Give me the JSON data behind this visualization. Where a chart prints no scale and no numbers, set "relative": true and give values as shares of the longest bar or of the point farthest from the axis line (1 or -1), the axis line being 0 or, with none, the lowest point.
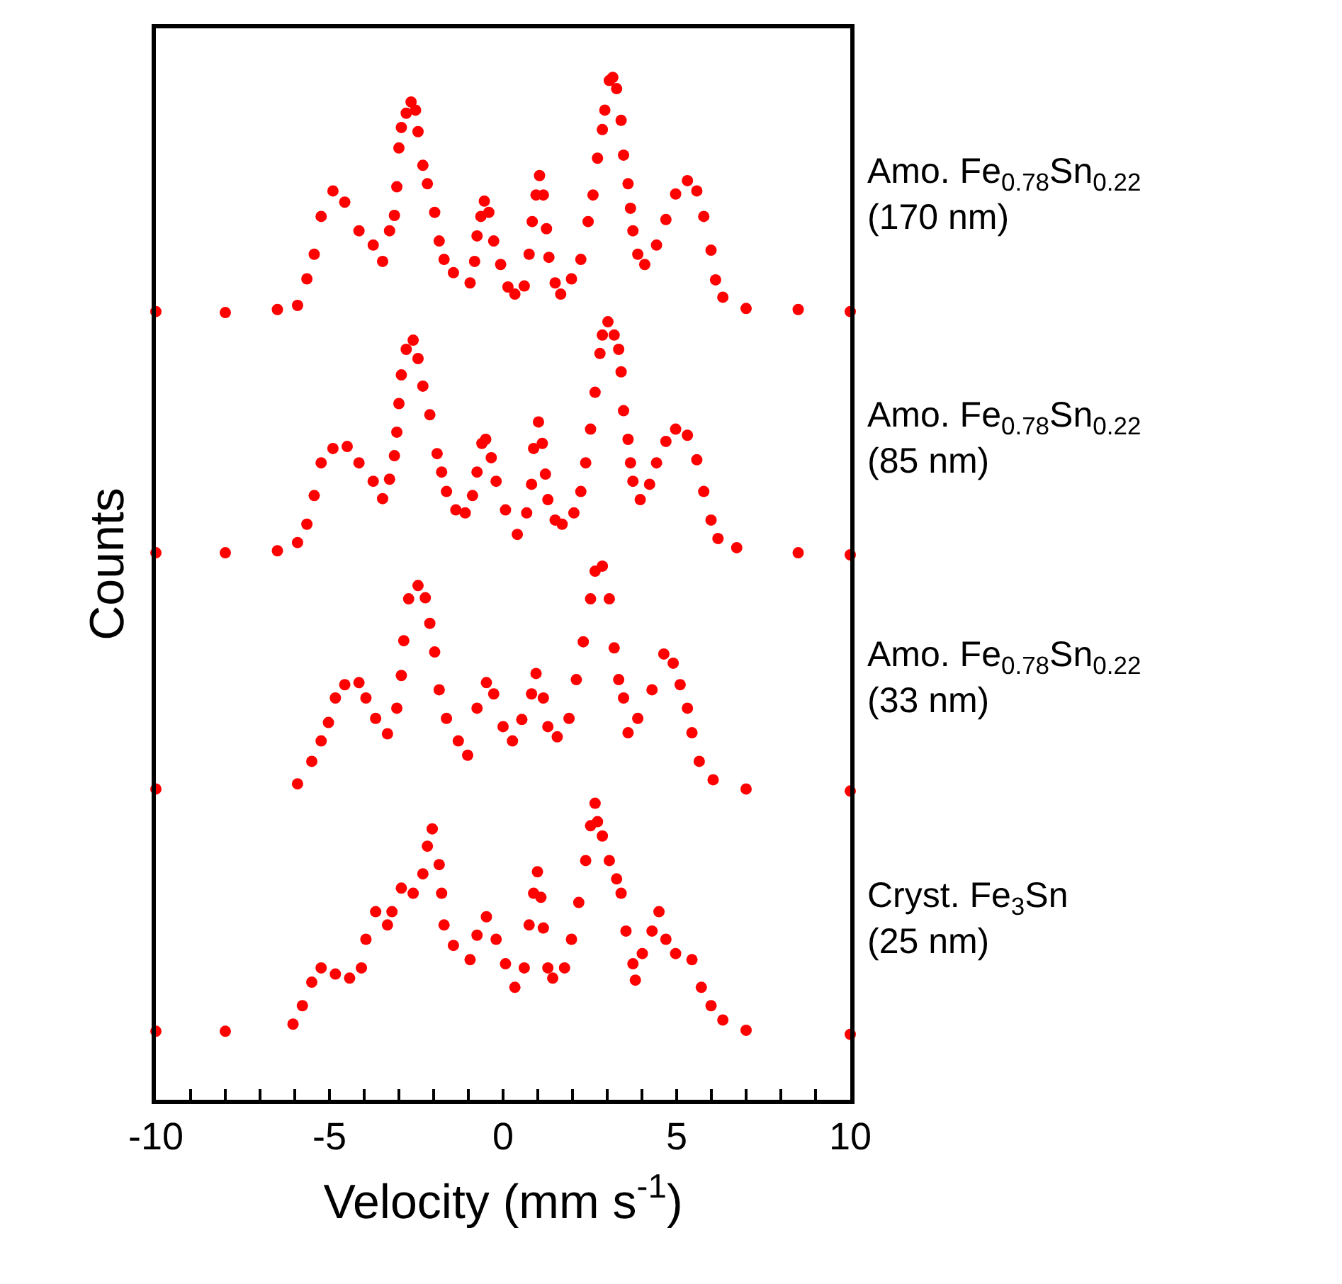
{
  "chart_data": {
    "type": "scatter",
    "relative": true,
    "xlabel": "Velocity (mm s$^{-1}$)",
    "ylabel": "Counts",
    "xlim": [
      -10,
      10
    ],
    "xticks": [
      -10,
      {
        "value": -9,
        "label": null
      },
      {
        "value": -8,
        "label": null
      },
      {
        "value": -7,
        "label": null
      },
      {
        "value": -6,
        "label": null
      },
      -5,
      {
        "value": -4,
        "label": null
      },
      {
        "value": -3,
        "label": null
      },
      {
        "value": -2,
        "label": null
      },
      {
        "value": -1,
        "label": null
      },
      0,
      {
        "value": 1,
        "label": null
      },
      {
        "value": 2,
        "label": null
      },
      {
        "value": 3,
        "label": null
      },
      {
        "value": 4,
        "label": null
      },
      5,
      {
        "value": 6,
        "label": null
      },
      {
        "value": 7,
        "label": null
      },
      {
        "value": 8,
        "label": null
      },
      {
        "value": 9,
        "label": null
      },
      10
    ],
    "legend": false,
    "marker": "circle",
    "tick_labels": "x",
    "series": [
      {
        "name": "Amo. Fe$_{0.78}$Sn$_{0.22}$\n(170 nm)",
        "color": "#ff0000",
        "x": [
          -10,
          -8,
          -6.5,
          -5.92,
          -5.65,
          -5.44,
          -5.24,
          -4.9,
          -4.56,
          -4.15,
          -3.74,
          -3.47,
          -3.27,
          -3.13,
          -3.06,
          -3.0,
          -2.93,
          -2.79,
          -2.65,
          -2.52,
          -2.45,
          -2.31,
          -2.18,
          -1.97,
          -1.84,
          -1.7,
          -1.43,
          -0.95,
          -0.82,
          -0.75,
          -0.64,
          -0.54,
          -0.41,
          -0.27,
          -0.07,
          0.14,
          0.34,
          0.61,
          0.75,
          0.84,
          0.95,
          1.05,
          1.16,
          1.25,
          1.32,
          1.5,
          1.66,
          1.97,
          2.24,
          2.45,
          2.59,
          2.72,
          2.86,
          2.93,
          3.06,
          3.16,
          3.27,
          3.4,
          3.47,
          3.6,
          3.67,
          3.74,
          3.88,
          4.08,
          4.42,
          4.69,
          4.97,
          5.31,
          5.58,
          5.78,
          5.99,
          6.12,
          6.33,
          7.0,
          8.5,
          10
        ],
        "values": [
          0.771,
          0.77,
          0.773,
          0.777,
          0.803,
          0.827,
          0.864,
          0.889,
          0.878,
          0.85,
          0.836,
          0.82,
          0.85,
          0.865,
          0.893,
          0.931,
          0.951,
          0.965,
          0.976,
          0.968,
          0.947,
          0.914,
          0.896,
          0.868,
          0.84,
          0.822,
          0.809,
          0.799,
          0.82,
          0.845,
          0.864,
          0.879,
          0.868,
          0.84,
          0.817,
          0.795,
          0.788,
          0.796,
          0.827,
          0.859,
          0.885,
          0.904,
          0.885,
          0.852,
          0.824,
          0.799,
          0.788,
          0.803,
          0.822,
          0.859,
          0.885,
          0.921,
          0.949,
          0.968,
          0.997,
          1.0,
          0.989,
          0.958,
          0.924,
          0.896,
          0.872,
          0.85,
          0.827,
          0.817,
          0.836,
          0.861,
          0.886,
          0.899,
          0.889,
          0.864,
          0.831,
          0.802,
          0.785,
          0.774,
          0.773,
          0.771
        ]
      },
      {
        "name": "Amo. Fe$_{0.78}$Sn$_{0.22}$\n(85 nm)",
        "color": "#ff0000",
        "x": [
          -10,
          -8,
          -6.5,
          -5.92,
          -5.65,
          -5.44,
          -5.24,
          -4.9,
          -4.49,
          -4.15,
          -3.74,
          -3.47,
          -3.27,
          -3.13,
          -3.06,
          -3.0,
          -2.93,
          -2.79,
          -2.59,
          -2.45,
          -2.31,
          -2.11,
          -1.9,
          -1.77,
          -1.63,
          -1.36,
          -1.09,
          -0.88,
          -0.75,
          -0.61,
          -0.5,
          -0.34,
          -0.2,
          0.07,
          0.41,
          0.68,
          0.82,
          0.88,
          1.02,
          1.13,
          1.22,
          1.29,
          1.5,
          1.7,
          2.04,
          2.24,
          2.38,
          2.52,
          2.65,
          2.79,
          2.86,
          3.02,
          3.2,
          3.33,
          3.4,
          3.47,
          3.6,
          3.67,
          3.74,
          3.95,
          4.22,
          4.42,
          4.69,
          4.97,
          5.31,
          5.58,
          5.78,
          5.99,
          6.19,
          6.73,
          8.5,
          10
        ],
        "values": [
          0.535,
          0.535,
          0.537,
          0.545,
          0.563,
          0.591,
          0.623,
          0.637,
          0.639,
          0.623,
          0.605,
          0.588,
          0.607,
          0.63,
          0.653,
          0.681,
          0.709,
          0.734,
          0.743,
          0.725,
          0.698,
          0.67,
          0.632,
          0.614,
          0.595,
          0.577,
          0.574,
          0.591,
          0.614,
          0.642,
          0.646,
          0.628,
          0.605,
          0.577,
          0.553,
          0.574,
          0.602,
          0.637,
          0.663,
          0.642,
          0.612,
          0.587,
          0.567,
          0.563,
          0.574,
          0.595,
          0.623,
          0.656,
          0.692,
          0.73,
          0.748,
          0.761,
          0.748,
          0.734,
          0.712,
          0.674,
          0.646,
          0.623,
          0.605,
          0.587,
          0.602,
          0.623,
          0.644,
          0.656,
          0.65,
          0.626,
          0.595,
          0.567,
          0.549,
          0.54,
          0.535,
          0.533
        ]
      },
      {
        "name": "Amo. Fe$_{0.78}$Sn$_{0.22}$\n(33 nm)",
        "color": "#ff0000",
        "x": [
          -10,
          -5.92,
          -5.51,
          -5.24,
          -5.03,
          -4.83,
          -4.56,
          -4.15,
          -3.95,
          -3.67,
          -3.33,
          -3.06,
          -2.93,
          -2.86,
          -2.72,
          -2.45,
          -2.24,
          -2.11,
          -1.97,
          -1.84,
          -1.63,
          -1.29,
          -1.02,
          -0.75,
          -0.48,
          -0.27,
          0.0,
          0.27,
          0.54,
          0.82,
          0.95,
          1.16,
          1.29,
          1.56,
          1.9,
          2.11,
          2.31,
          2.52,
          2.65,
          2.86,
          3.06,
          3.2,
          3.33,
          3.47,
          3.6,
          3.88,
          4.29,
          4.63,
          4.9,
          5.1,
          5.31,
          5.44,
          5.65,
          6.05,
          7.0,
          10
        ],
        "values": [
          0.304,
          0.309,
          0.331,
          0.351,
          0.369,
          0.393,
          0.406,
          0.408,
          0.393,
          0.373,
          0.358,
          0.383,
          0.415,
          0.449,
          0.49,
          0.503,
          0.491,
          0.466,
          0.438,
          0.401,
          0.373,
          0.351,
          0.337,
          0.383,
          0.408,
          0.397,
          0.365,
          0.351,
          0.372,
          0.397,
          0.417,
          0.393,
          0.365,
          0.355,
          0.373,
          0.411,
          0.448,
          0.49,
          0.517,
          0.522,
          0.49,
          0.442,
          0.411,
          0.393,
          0.359,
          0.373,
          0.401,
          0.436,
          0.427,
          0.406,
          0.383,
          0.359,
          0.331,
          0.313,
          0.304,
          0.302
        ]
      },
      {
        "name": "Cryst. Fe$_{3}$Sn\n(25 nm)",
        "color": "#ff0000",
        "x": [
          -10,
          -8,
          -6.05,
          -5.78,
          -5.51,
          -5.24,
          -4.83,
          -4.42,
          -4.08,
          -3.95,
          -3.67,
          -3.33,
          -3.2,
          -2.93,
          -2.59,
          -2.31,
          -2.18,
          -2.04,
          -1.84,
          -1.77,
          -1.7,
          -1.43,
          -0.95,
          -0.75,
          -0.48,
          -0.2,
          0.07,
          0.34,
          0.61,
          0.75,
          0.88,
          0.99,
          1.09,
          1.16,
          1.29,
          1.43,
          1.77,
          1.97,
          2.18,
          2.38,
          2.52,
          2.65,
          2.72,
          2.86,
          3.06,
          3.27,
          3.4,
          3.54,
          3.74,
          3.81,
          4.01,
          4.29,
          4.49,
          4.69,
          4.97,
          5.44,
          5.71,
          5.99,
          6.33,
          7.0,
          10
        ],
        "values": [
          0.067,
          0.067,
          0.074,
          0.092,
          0.115,
          0.129,
          0.123,
          0.119,
          0.129,
          0.157,
          0.184,
          0.171,
          0.184,
          0.207,
          0.202,
          0.221,
          0.248,
          0.265,
          0.23,
          0.202,
          0.171,
          0.151,
          0.137,
          0.161,
          0.179,
          0.157,
          0.133,
          0.11,
          0.129,
          0.171,
          0.202,
          0.223,
          0.198,
          0.168,
          0.129,
          0.119,
          0.129,
          0.157,
          0.193,
          0.234,
          0.268,
          0.29,
          0.272,
          0.258,
          0.234,
          0.216,
          0.202,
          0.165,
          0.133,
          0.117,
          0.143,
          0.165,
          0.184,
          0.157,
          0.143,
          0.137,
          0.11,
          0.092,
          0.078,
          0.068,
          0.064
        ]
      }
    ]
  }
}
